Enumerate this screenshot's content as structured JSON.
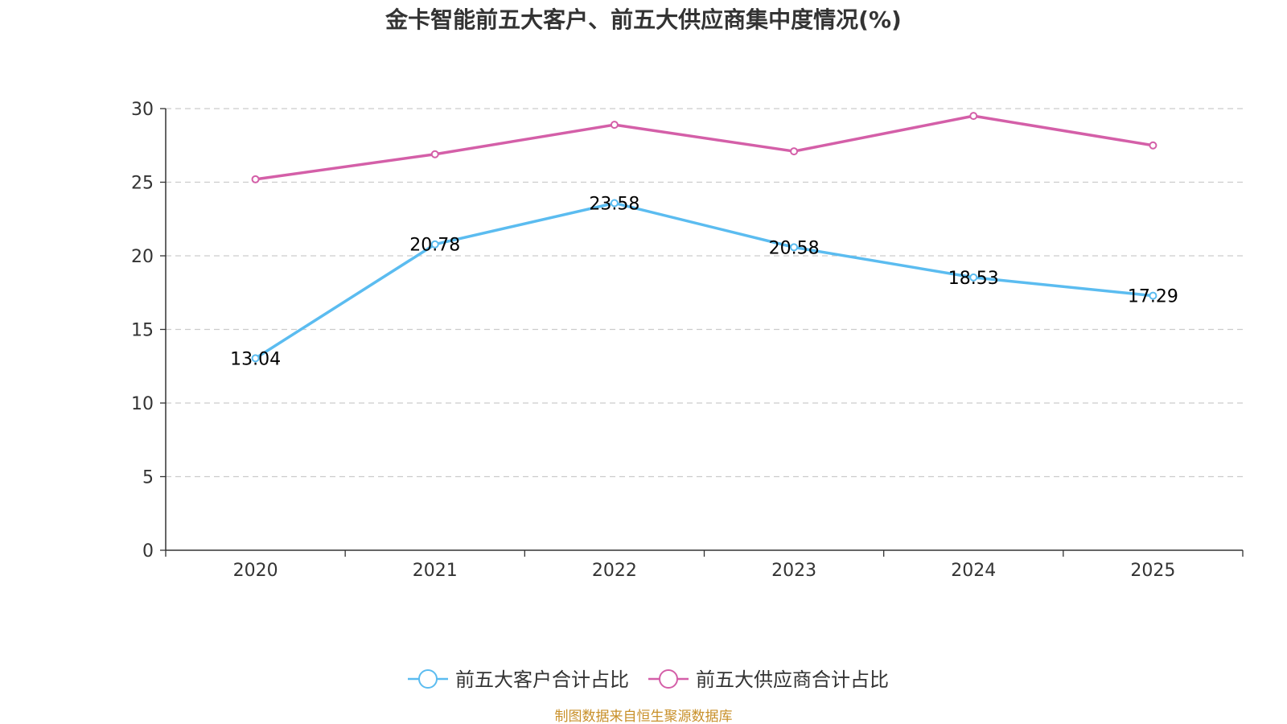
{
  "chart_data": {
    "type": "line",
    "title": "金卡智能前五大客户、前五大供应商集中度情况(%)",
    "categories": [
      "2020",
      "2021",
      "2022",
      "2023",
      "2024",
      "2025"
    ],
    "ylim": [
      0,
      30
    ],
    "yticks": [
      0,
      5,
      10,
      15,
      20,
      25,
      30
    ],
    "grid": true,
    "legend_position": "bottom",
    "series": [
      {
        "name": "前五大客户合计占比",
        "color": "#5bbcf0",
        "values": [
          13.04,
          20.78,
          23.58,
          20.58,
          18.53,
          17.29
        ],
        "labels": [
          "13.04",
          "20.78",
          "23.58",
          "20.58",
          "18.53",
          "17.29"
        ],
        "show_labels": true
      },
      {
        "name": "前五大供应商合计占比",
        "color": "#d45fa8",
        "values": [
          25.2,
          26.9,
          28.9,
          27.1,
          29.5,
          27.5
        ],
        "show_labels": false
      }
    ],
    "source": "制图数据来自恒生聚源数据库",
    "source_color": "#c8902a"
  }
}
